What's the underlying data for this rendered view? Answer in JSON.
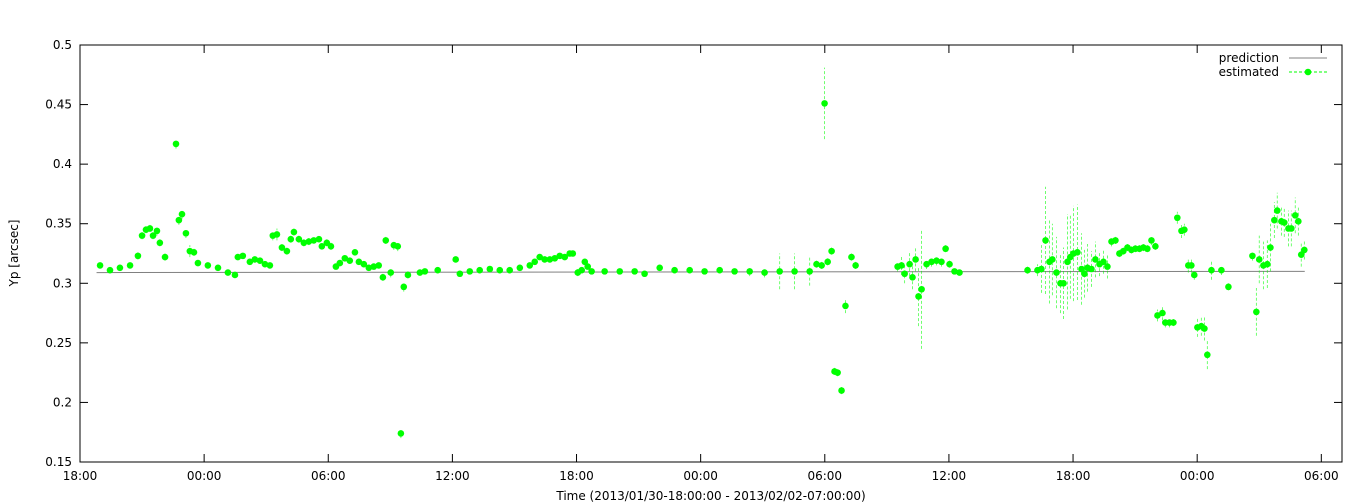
{
  "chart_data": {
    "type": "scatter",
    "x_label": "Time (2013/01/30-18:00:00 - 2013/02/02-07:00:00)",
    "y_label": "Yp [arcsec]",
    "xlim": [
      0,
      61
    ],
    "ylim": [
      0.15,
      0.5
    ],
    "xticks": [
      {
        "value": 0,
        "label": "18:00"
      },
      {
        "value": 6,
        "label": "00:00"
      },
      {
        "value": 12,
        "label": "06:00"
      },
      {
        "value": 18,
        "label": "12:00"
      },
      {
        "value": 24,
        "label": "18:00"
      },
      {
        "value": 30,
        "label": "00:00"
      },
      {
        "value": 36,
        "label": "06:00"
      },
      {
        "value": 42,
        "label": "12:00"
      },
      {
        "value": 48,
        "label": "18:00"
      },
      {
        "value": 54,
        "label": "00:00"
      },
      {
        "value": 60,
        "label": "06:00"
      }
    ],
    "yticks": [
      0.15,
      0.2,
      0.25,
      0.3,
      0.35,
      0.4,
      0.45,
      0.5
    ],
    "grid": false,
    "legend": "top-right",
    "series": [
      {
        "name": "prediction",
        "color": "#808080",
        "style": "line",
        "x": [
          0.8,
          59.2
        ],
        "values": [
          0.309,
          0.31
        ]
      },
      {
        "name": "estimated",
        "color": "#00ff00",
        "style": "points-errorbars",
        "x": [
          0.97,
          1.45,
          1.93,
          2.42,
          2.8,
          3.0,
          3.19,
          3.38,
          3.53,
          3.72,
          3.86,
          4.11,
          4.64,
          4.78,
          4.93,
          5.12,
          5.31,
          5.51,
          5.7,
          6.18,
          6.67,
          7.15,
          7.49,
          7.63,
          7.87,
          8.21,
          8.45,
          8.7,
          8.94,
          9.18,
          9.32,
          9.52,
          9.76,
          10.0,
          10.19,
          10.34,
          10.58,
          10.82,
          11.06,
          11.3,
          11.55,
          11.69,
          11.93,
          12.13,
          12.37,
          12.56,
          12.8,
          13.04,
          13.29,
          13.48,
          13.72,
          13.96,
          14.2,
          14.44,
          14.64,
          14.78,
          15.02,
          15.17,
          15.36,
          15.51,
          15.65,
          15.85,
          16.43,
          16.67,
          17.29,
          18.16,
          18.36,
          18.84,
          19.32,
          19.81,
          20.29,
          20.77,
          21.26,
          21.74,
          21.98,
          22.22,
          22.46,
          22.71,
          22.95,
          23.19,
          23.43,
          23.67,
          23.82,
          24.06,
          24.25,
          24.4,
          24.54,
          24.73,
          25.36,
          26.09,
          26.81,
          27.29,
          28.02,
          28.74,
          29.47,
          30.19,
          30.92,
          31.64,
          32.37,
          33.09,
          33.82,
          34.54,
          35.27,
          35.6,
          35.85,
          35.99,
          36.14,
          36.33,
          36.47,
          36.62,
          36.81,
          37.0,
          37.29,
          37.49,
          39.52,
          39.71,
          39.86,
          40.1,
          40.24,
          40.39,
          40.53,
          40.68,
          40.92,
          41.16,
          41.4,
          41.64,
          41.84,
          42.03,
          42.27,
          42.51,
          45.8,
          46.28,
          46.47,
          46.67,
          46.86,
          47.0,
          47.2,
          47.39,
          47.54,
          47.73,
          47.87,
          48.02,
          48.21,
          48.41,
          48.55,
          48.7,
          48.89,
          49.08,
          49.28,
          49.47,
          49.66,
          49.86,
          50.05,
          50.24,
          50.43,
          50.63,
          50.82,
          51.01,
          51.21,
          51.4,
          51.59,
          51.79,
          51.98,
          52.08,
          52.32,
          52.46,
          52.66,
          52.85,
          53.04,
          53.24,
          53.38,
          53.57,
          53.72,
          53.86,
          54.01,
          54.2,
          54.35,
          54.49,
          54.69,
          55.17,
          55.51,
          56.67,
          56.86,
          57.0,
          57.2,
          57.39,
          57.54,
          57.73,
          57.87,
          58.07,
          58.21,
          58.41,
          58.55,
          58.74,
          58.89,
          59.03,
          59.18
        ],
        "values": [
          0.315,
          0.311,
          0.313,
          0.315,
          0.323,
          0.34,
          0.345,
          0.346,
          0.34,
          0.344,
          0.334,
          0.322,
          0.417,
          0.353,
          0.358,
          0.342,
          0.327,
          0.326,
          0.317,
          0.315,
          0.313,
          0.309,
          0.307,
          0.322,
          0.323,
          0.318,
          0.32,
          0.319,
          0.316,
          0.315,
          0.34,
          0.341,
          0.33,
          0.327,
          0.337,
          0.343,
          0.337,
          0.334,
          0.335,
          0.336,
          0.337,
          0.331,
          0.334,
          0.331,
          0.314,
          0.317,
          0.321,
          0.319,
          0.326,
          0.318,
          0.316,
          0.313,
          0.314,
          0.315,
          0.305,
          0.336,
          0.309,
          0.332,
          0.331,
          0.174,
          0.297,
          0.307,
          0.309,
          0.31,
          0.311,
          0.32,
          0.308,
          0.31,
          0.311,
          0.312,
          0.311,
          0.311,
          0.313,
          0.315,
          0.318,
          0.322,
          0.32,
          0.32,
          0.321,
          0.323,
          0.322,
          0.325,
          0.325,
          0.309,
          0.311,
          0.318,
          0.314,
          0.31,
          0.31,
          0.31,
          0.31,
          0.308,
          0.313,
          0.311,
          0.311,
          0.31,
          0.311,
          0.31,
          0.31,
          0.309,
          0.31,
          0.31,
          0.31,
          0.316,
          0.315,
          0.451,
          0.318,
          0.327,
          0.226,
          0.225,
          0.21,
          0.281,
          0.322,
          0.315,
          0.314,
          0.315,
          0.308,
          0.316,
          0.305,
          0.32,
          0.289,
          0.295,
          0.316,
          0.318,
          0.319,
          0.318,
          0.329,
          0.316,
          0.31,
          0.309,
          0.311,
          0.311,
          0.312,
          0.336,
          0.318,
          0.32,
          0.309,
          0.3,
          0.3,
          0.318,
          0.322,
          0.325,
          0.326,
          0.312,
          0.308,
          0.313,
          0.312,
          0.32,
          0.316,
          0.318,
          0.314,
          0.335,
          0.336,
          0.325,
          0.327,
          0.33,
          0.328,
          0.329,
          0.329,
          0.33,
          0.329,
          0.336,
          0.331,
          0.273,
          0.275,
          0.267,
          0.267,
          0.267,
          0.355,
          0.344,
          0.345,
          0.315,
          0.315,
          0.307,
          0.263,
          0.264,
          0.262,
          0.24,
          0.311,
          0.311,
          0.297,
          0.323,
          0.276,
          0.32,
          0.315,
          0.316,
          0.33,
          0.353,
          0.361,
          0.352,
          0.351,
          0.346,
          0.346,
          0.357,
          0.352,
          0.324,
          0.328
        ],
        "errors": [
          0.002,
          0.002,
          0.002,
          0.002,
          0.003,
          0.003,
          0.003,
          0.003,
          0.003,
          0.004,
          0.003,
          0.003,
          0.004,
          0.004,
          0.004,
          0.004,
          0.005,
          0.003,
          0.002,
          0.002,
          0.002,
          0.002,
          0.002,
          0.002,
          0.002,
          0.002,
          0.002,
          0.002,
          0.002,
          0.002,
          0.004,
          0.005,
          0.003,
          0.003,
          0.003,
          0.003,
          0.003,
          0.003,
          0.003,
          0.002,
          0.002,
          0.002,
          0.003,
          0.003,
          0.002,
          0.002,
          0.002,
          0.002,
          0.002,
          0.002,
          0.002,
          0.002,
          0.002,
          0.002,
          0.003,
          0.003,
          0.004,
          0.004,
          0.004,
          0.004,
          0.004,
          0.003,
          0.002,
          0.002,
          0.002,
          0.002,
          0.002,
          0.002,
          0.002,
          0.002,
          0.002,
          0.002,
          0.002,
          0.002,
          0.002,
          0.002,
          0.002,
          0.002,
          0.002,
          0.002,
          0.002,
          0.002,
          0.002,
          0.003,
          0.002,
          0.002,
          0.002,
          0.002,
          0.002,
          0.002,
          0.002,
          0.002,
          0.002,
          0.002,
          0.002,
          0.002,
          0.002,
          0.002,
          0.004,
          0.004,
          0.015,
          0.015,
          0.012,
          0.003,
          0.003,
          0.03,
          0.003,
          0.003,
          0.003,
          0.003,
          0.003,
          0.006,
          0.003,
          0.003,
          0.004,
          0.008,
          0.008,
          0.01,
          0.01,
          0.01,
          0.025,
          0.05,
          0.004,
          0.004,
          0.004,
          0.004,
          0.003,
          0.003,
          0.002,
          0.002,
          0.003,
          0.005,
          0.02,
          0.045,
          0.035,
          0.03,
          0.03,
          0.025,
          0.03,
          0.04,
          0.035,
          0.04,
          0.04,
          0.03,
          0.02,
          0.02,
          0.015,
          0.015,
          0.01,
          0.01,
          0.01,
          0.004,
          0.003,
          0.003,
          0.003,
          0.003,
          0.003,
          0.003,
          0.003,
          0.003,
          0.003,
          0.004,
          0.003,
          0.005,
          0.006,
          0.004,
          0.004,
          0.003,
          0.005,
          0.006,
          0.005,
          0.006,
          0.006,
          0.004,
          0.008,
          0.008,
          0.01,
          0.012,
          0.008,
          0.004,
          0.003,
          0.004,
          0.02,
          0.02,
          0.02,
          0.02,
          0.02,
          0.015,
          0.015,
          0.012,
          0.012,
          0.015,
          0.015,
          0.015,
          0.012,
          0.01,
          0.008
        ]
      }
    ]
  }
}
